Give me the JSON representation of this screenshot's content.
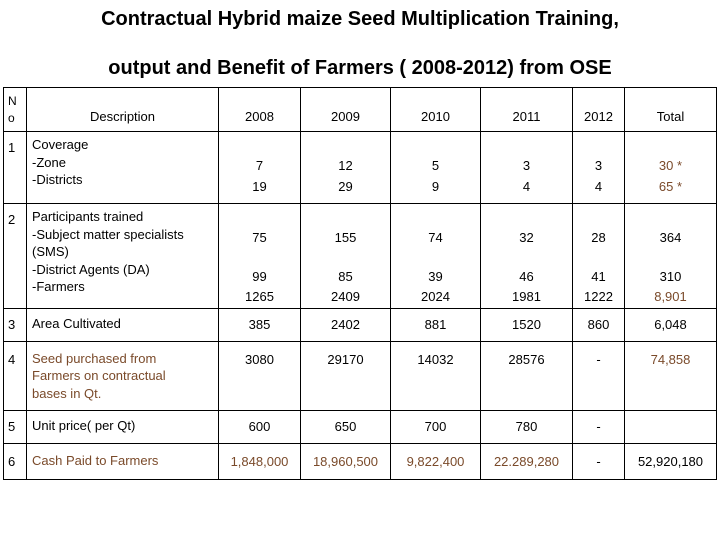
{
  "header": {
    "title_lines": [
      "Contractual Hybrid maize Seed Multiplication Training,",
      "output and Benefit of Farmers ( 2008-2012) from OSE"
    ]
  },
  "table": {
    "columns": [
      "N o",
      "Description",
      "2008",
      "2009",
      "2010",
      "2011",
      "2012",
      "Total"
    ],
    "rows": [
      [
        [
          "1"
        ],
        [
          "Coverage",
          "-Zone",
          "-Districts"
        ],
        [
          "7",
          "19"
        ],
        [
          "12",
          "29"
        ],
        [
          "5",
          "9"
        ],
        [
          "3",
          "4"
        ],
        [
          "3",
          "4"
        ],
        [
          "30 *",
          "65 *"
        ]
      ],
      [
        [
          "2"
        ],
        [
          "Participants trained",
          "-Subject matter specialists",
          "(SMS)",
          "-District Agents (DA)",
          "-Farmers"
        ],
        [
          "75",
          "99",
          "1265"
        ],
        [
          "155",
          "85",
          "2409"
        ],
        [
          "74",
          "39",
          "2024"
        ],
        [
          "32",
          "46",
          "1981"
        ],
        [
          "28",
          "41",
          "1222"
        ],
        [
          "364",
          "310",
          "8,901"
        ]
      ],
      [
        [
          "3"
        ],
        [
          "Area Cultivated"
        ],
        [
          "385"
        ],
        [
          "2402"
        ],
        [
          "881"
        ],
        [
          "1520"
        ],
        [
          "860"
        ],
        [
          "6,048"
        ]
      ],
      [
        [
          "4"
        ],
        [
          "Seed purchased from",
          "Farmers on contractual",
          "bases in Qt."
        ],
        [
          "3080"
        ],
        [
          "29170"
        ],
        [
          "14032"
        ],
        [
          "28576"
        ],
        [
          "-"
        ],
        [
          "74,858"
        ]
      ],
      [
        [
          "5"
        ],
        [
          "Unit price( per Qt)"
        ],
        [
          "600"
        ],
        [
          "650"
        ],
        [
          "700"
        ],
        [
          "780"
        ],
        [
          "-"
        ],
        []
      ],
      [
        [
          "6"
        ],
        [
          "Cash Paid to Farmers"
        ],
        [
          "1,848,000"
        ],
        [
          "18,960,500"
        ],
        [
          "9,822,400"
        ],
        [
          "22.289,280"
        ],
        [
          "-"
        ],
        [
          "52,920,180"
        ]
      ]
    ]
  }
}
